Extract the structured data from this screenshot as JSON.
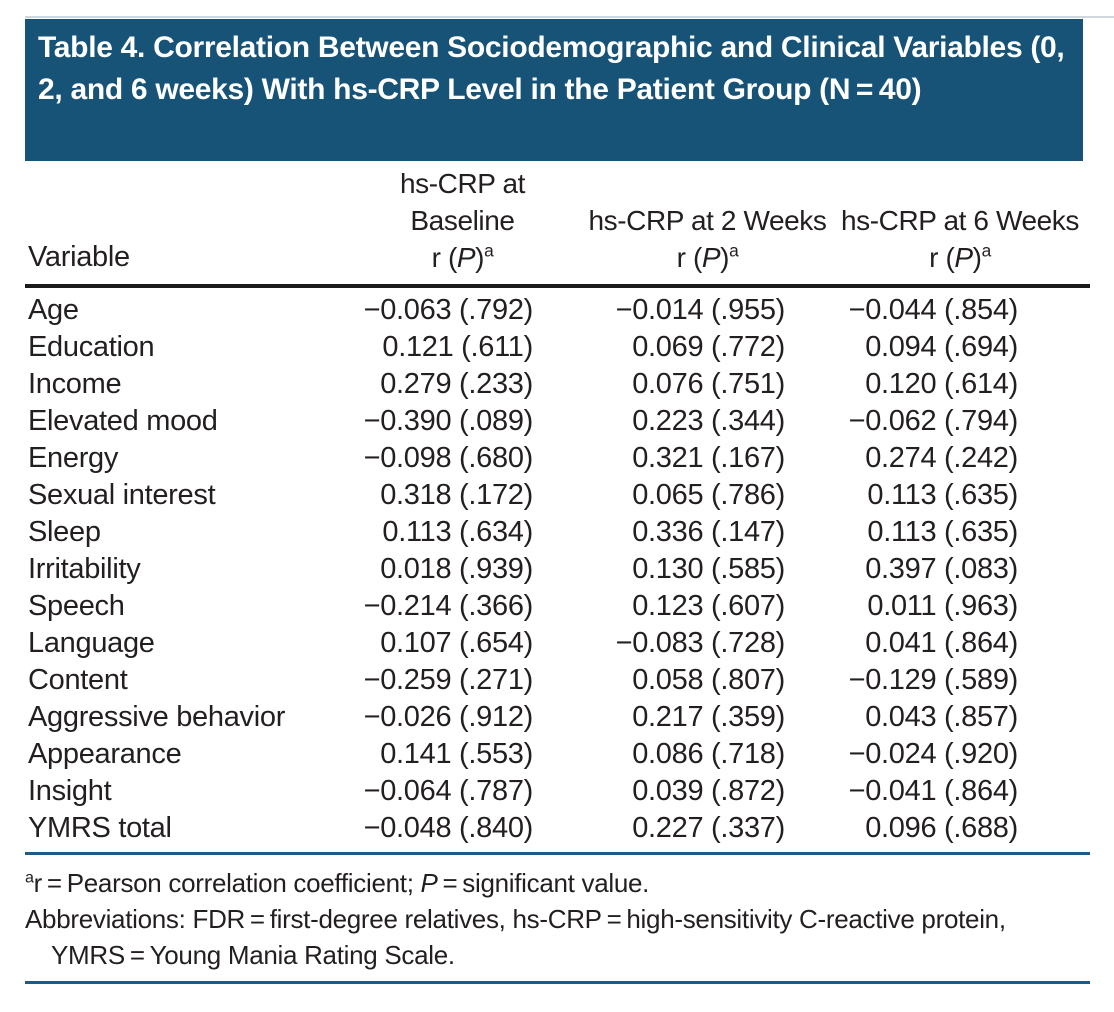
{
  "colors": {
    "banner_blue": "#175277",
    "rule_blue": "#1e5a87",
    "header_rule": "#1a1a1a",
    "hairline": "#cfd6de",
    "text": "#231f20",
    "title_text": "#ffffff",
    "page_bg": "#ffffff"
  },
  "title": "Table 4. Correlation Between Sociodemographic and Clinical Variables (0, 2, and 6 weeks) With hs-CRP Level in the Patient Group (N = 40)",
  "table": {
    "variable_header": "Variable",
    "columns": [
      {
        "line1": "hs-CRP at",
        "line2": "Baseline"
      },
      {
        "line1": "",
        "line2": "hs-CRP at 2 Weeks"
      },
      {
        "line1": "",
        "line2": "hs-CRP at 6 Weeks"
      }
    ],
    "rp_header": {
      "prefix": "r (",
      "italic": "P",
      "suffix": ")",
      "superscript": "a"
    },
    "rows": [
      {
        "variable": "Age",
        "baseline": "−0.063 (.792)",
        "week2": "−0.014 (.955)",
        "week6": "−0.044 (.854)"
      },
      {
        "variable": "Education",
        "baseline": "0.121 (.611)",
        "week2": "0.069 (.772)",
        "week6": "0.094 (.694)"
      },
      {
        "variable": "Income",
        "baseline": "0.279 (.233)",
        "week2": "0.076 (.751)",
        "week6": "0.120 (.614)"
      },
      {
        "variable": "Elevated mood",
        "baseline": "−0.390 (.089)",
        "week2": "0.223 (.344)",
        "week6": "−0.062 (.794)"
      },
      {
        "variable": "Energy",
        "baseline": "−0.098 (.680)",
        "week2": "0.321 (.167)",
        "week6": "0.274 (.242)"
      },
      {
        "variable": "Sexual interest",
        "baseline": "0.318 (.172)",
        "week2": "0.065 (.786)",
        "week6": "0.113 (.635)"
      },
      {
        "variable": "Sleep",
        "baseline": "0.113 (.634)",
        "week2": "0.336 (.147)",
        "week6": "0.113 (.635)"
      },
      {
        "variable": "Irritability",
        "baseline": "0.018 (.939)",
        "week2": "0.130 (.585)",
        "week6": "0.397 (.083)"
      },
      {
        "variable": "Speech",
        "baseline": "−0.214 (.366)",
        "week2": "0.123 (.607)",
        "week6": "0.011 (.963)"
      },
      {
        "variable": "Language",
        "baseline": "0.107 (.654)",
        "week2": "−0.083 (.728)",
        "week6": "0.041 (.864)"
      },
      {
        "variable": "Content",
        "baseline": "−0.259 (.271)",
        "week2": "0.058 (.807)",
        "week6": "−0.129 (.589)"
      },
      {
        "variable": "Aggressive behavior",
        "baseline": "−0.026 (.912)",
        "week2": "0.217 (.359)",
        "week6": "0.043 (.857)"
      },
      {
        "variable": "Appearance",
        "baseline": "0.141 (.553)",
        "week2": "0.086 (.718)",
        "week6": "−0.024 (.920)"
      },
      {
        "variable": "Insight",
        "baseline": "−0.064 (.787)",
        "week2": "0.039 (.872)",
        "week6": "−0.041 (.864)"
      },
      {
        "variable": "YMRS total",
        "baseline": "−0.048 (.840)",
        "week2": "0.227 (.337)",
        "week6": "0.096 (.688)"
      }
    ]
  },
  "footnotes": {
    "note_a": {
      "superscript": "a",
      "text_before_italic": "r = Pearson correlation coefficient; ",
      "italic": "P",
      "text_after_italic": " = significant value."
    },
    "abbreviations": "Abbreviations: FDR = first-degree relatives, hs-CRP = high-sensitivity C-reactive protein, YMRS = Young Mania Rating Scale."
  }
}
